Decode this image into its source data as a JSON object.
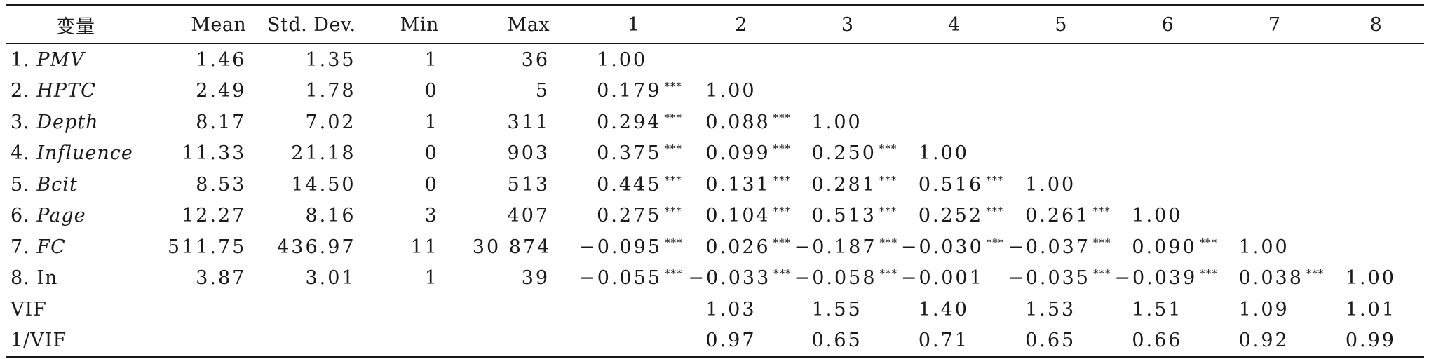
{
  "table": {
    "headers": [
      "变量",
      "Mean",
      "Std. Dev.",
      "Min",
      "Max",
      "1",
      "2",
      "3",
      "4",
      "5",
      "6",
      "7",
      "8"
    ],
    "rows": [
      {
        "prefix": "1. ",
        "name": "PMV",
        "italic": true,
        "mean": "1.46",
        "sd": "1.35",
        "min": "1",
        "max": "36",
        "corr": [
          {
            "v": "1.00",
            "s": ""
          }
        ]
      },
      {
        "prefix": "2. ",
        "name": "HPTC",
        "italic": true,
        "mean": "2.49",
        "sd": "1.78",
        "min": "0",
        "max": "5",
        "corr": [
          {
            "v": "0.179",
            "s": "***"
          },
          {
            "v": "1.00",
            "s": ""
          }
        ]
      },
      {
        "prefix": "3. ",
        "name": "Depth",
        "italic": true,
        "mean": "8.17",
        "sd": "7.02",
        "min": "1",
        "max": "311",
        "corr": [
          {
            "v": "0.294",
            "s": "***"
          },
          {
            "v": "0.088",
            "s": "***"
          },
          {
            "v": "1.00",
            "s": ""
          }
        ]
      },
      {
        "prefix": "4. ",
        "name": "Influence",
        "italic": true,
        "mean": "11.33",
        "sd": "21.18",
        "min": "0",
        "max": "903",
        "corr": [
          {
            "v": "0.375",
            "s": "***"
          },
          {
            "v": "0.099",
            "s": "***"
          },
          {
            "v": "0.250",
            "s": "***"
          },
          {
            "v": "1.00",
            "s": ""
          }
        ]
      },
      {
        "prefix": "5. ",
        "name": "Bcit",
        "italic": true,
        "mean": "8.53",
        "sd": "14.50",
        "min": "0",
        "max": "513",
        "corr": [
          {
            "v": "0.445",
            "s": "***"
          },
          {
            "v": "0.131",
            "s": "***"
          },
          {
            "v": "0.281",
            "s": "***"
          },
          {
            "v": "0.516",
            "s": "***"
          },
          {
            "v": "1.00",
            "s": ""
          }
        ]
      },
      {
        "prefix": "6. ",
        "name": "Page",
        "italic": true,
        "mean": "12.27",
        "sd": "8.16",
        "min": "3",
        "max": "407",
        "corr": [
          {
            "v": "0.275",
            "s": "***"
          },
          {
            "v": "0.104",
            "s": "***"
          },
          {
            "v": "0.513",
            "s": "***"
          },
          {
            "v": "0.252",
            "s": "***"
          },
          {
            "v": "0.261",
            "s": "***"
          },
          {
            "v": "1.00",
            "s": ""
          }
        ]
      },
      {
        "prefix": "7. ",
        "name": "FC",
        "italic": true,
        "mean": "511.75",
        "sd": "436.97",
        "min": "11",
        "max": "30 874",
        "corr": [
          {
            "v": "−0.095",
            "s": "***"
          },
          {
            "v": "0.026",
            "s": "***"
          },
          {
            "v": "−0.187",
            "s": "***"
          },
          {
            "v": "−0.030",
            "s": "***"
          },
          {
            "v": "−0.037",
            "s": "***"
          },
          {
            "v": "0.090",
            "s": "***"
          },
          {
            "v": "1.00",
            "s": ""
          }
        ]
      },
      {
        "prefix": "8. ",
        "name": "In",
        "italic": false,
        "mean": "3.87",
        "sd": "3.01",
        "min": "1",
        "max": "39",
        "corr": [
          {
            "v": "−0.055",
            "s": "***"
          },
          {
            "v": "−0.033",
            "s": "***"
          },
          {
            "v": "−0.058",
            "s": "***"
          },
          {
            "v": "−0.001",
            "s": ""
          },
          {
            "v": "−0.035",
            "s": "***"
          },
          {
            "v": "−0.039",
            "s": "***"
          },
          {
            "v": "0.038",
            "s": "***"
          },
          {
            "v": "1.00",
            "s": ""
          }
        ]
      }
    ],
    "vif": {
      "label": "VIF",
      "values": [
        "",
        "1.03",
        "1.55",
        "1.40",
        "1.53",
        "1.51",
        "1.09",
        "1.01"
      ]
    },
    "inv_vif": {
      "label": "1/VIF",
      "values": [
        "",
        "0.97",
        "0.65",
        "0.71",
        "0.65",
        "0.66",
        "0.92",
        "0.99"
      ]
    }
  }
}
